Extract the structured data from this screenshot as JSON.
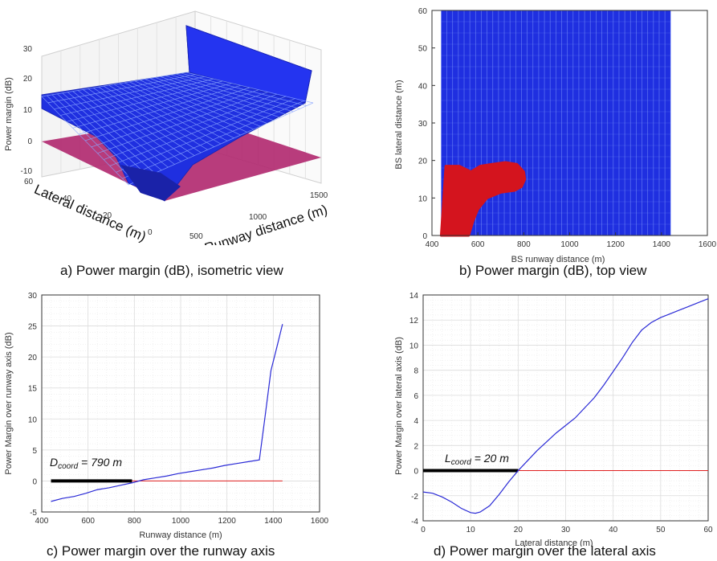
{
  "captions": {
    "a": "a) Power margin (dB), isometric view",
    "b": "b) Power margin (dB), top view",
    "c": "c) Power margin over the runway axis",
    "d": "d) Power margin over the lateral axis"
  },
  "colors": {
    "surface": "#1f2fe0",
    "surface_mesh": "#8aa6ff",
    "plane": "#b0276e",
    "red_region": "#d4141e",
    "line": "#2a2ad6",
    "zero_line": "#e02020",
    "coord_bar": "#000000"
  },
  "chart_data": [
    {
      "id": "a",
      "type": "surface",
      "title": "",
      "xlabel": "Runway distance (m)",
      "ylabel": "Lateral distance (m)",
      "zlabel": "Power margin (dB)",
      "xticks": [
        "500",
        "1000",
        "1500"
      ],
      "yticks": [
        "0",
        "20",
        "40",
        "60"
      ],
      "zticks": [
        "-10",
        "0",
        "10",
        "20",
        "30"
      ],
      "zlim": [
        -10,
        30
      ],
      "reference_plane": 0
    },
    {
      "id": "b",
      "type": "heatmap",
      "title": "",
      "xlabel": "BS runway distance (m)",
      "ylabel": "BS lateral distance (m)",
      "xlim": [
        400,
        1600
      ],
      "ylim": [
        0,
        60
      ],
      "xticks": [
        400,
        600,
        800,
        1000,
        1200,
        1400,
        1600
      ],
      "yticks": [
        0,
        10,
        20,
        30,
        40,
        50,
        60
      ],
      "data_extent_x": [
        440,
        1440
      ],
      "negative_region": {
        "x": [
          440,
          460,
          520,
          570,
          610,
          660,
          720,
          770,
          800,
          805,
          790,
          760,
          700,
          640,
          600,
          580,
          560,
          440
        ],
        "y": [
          0,
          18.5,
          18.5,
          17,
          18.5,
          19,
          19.5,
          19,
          17,
          15,
          13,
          12,
          11.5,
          10,
          7,
          4,
          0,
          0
        ]
      }
    },
    {
      "id": "c",
      "type": "line",
      "title": "",
      "xlabel": "Runway distance (m)",
      "ylabel": "Power Margin over runway axis (dB)",
      "xlim": [
        400,
        1600
      ],
      "ylim": [
        -5,
        30
      ],
      "xticks": [
        400,
        600,
        800,
        1000,
        1200,
        1400,
        1600
      ],
      "yticks": [
        -5,
        0,
        5,
        10,
        15,
        20,
        25,
        30
      ],
      "grid": true,
      "x": [
        440,
        490,
        540,
        590,
        640,
        690,
        740,
        790,
        840,
        890,
        940,
        990,
        1040,
        1090,
        1140,
        1190,
        1240,
        1290,
        1340,
        1365,
        1390,
        1415,
        1440
      ],
      "y": [
        -3.3,
        -2.8,
        -2.5,
        -2.0,
        -1.4,
        -1.1,
        -0.7,
        -0.3,
        0.2,
        0.5,
        0.8,
        1.2,
        1.5,
        1.8,
        2.1,
        2.5,
        2.8,
        3.1,
        3.4,
        10.5,
        17.8,
        21.5,
        25.3
      ],
      "zero_line_x": [
        440,
        1440
      ],
      "annotation": {
        "prefix": "D",
        "subscript": "coord",
        "suffix": " = 790 m"
      },
      "coord_bar_x": [
        440,
        790
      ]
    },
    {
      "id": "d",
      "type": "line",
      "title": "",
      "xlabel": "Lateral distance (m)",
      "ylabel": "Power Margin over lateral axis (dB)",
      "xlim": [
        0,
        60
      ],
      "ylim": [
        -4,
        14
      ],
      "xticks": [
        0,
        10,
        20,
        30,
        40,
        50,
        60
      ],
      "yticks": [
        -4,
        -2,
        0,
        2,
        4,
        6,
        8,
        10,
        12,
        14
      ],
      "grid": true,
      "x": [
        0,
        2,
        4,
        6,
        8,
        10,
        11,
        12,
        14,
        16,
        18,
        20,
        22,
        24,
        26,
        28,
        30,
        32,
        34,
        36,
        38,
        40,
        42,
        44,
        46,
        48,
        50,
        52,
        54,
        56,
        58,
        60
      ],
      "y": [
        -1.7,
        -1.8,
        -2.1,
        -2.5,
        -3.0,
        -3.35,
        -3.4,
        -3.3,
        -2.8,
        -1.9,
        -0.9,
        0.0,
        0.8,
        1.6,
        2.3,
        3.0,
        3.6,
        4.2,
        5.0,
        5.8,
        6.8,
        7.9,
        9.0,
        10.2,
        11.2,
        11.8,
        12.2,
        12.5,
        12.8,
        13.1,
        13.4,
        13.7
      ],
      "zero_line_x": [
        20,
        60
      ],
      "annotation": {
        "prefix": "L",
        "subscript": "coord",
        "suffix": " = 20 m"
      },
      "coord_bar_x": [
        0,
        20
      ]
    }
  ]
}
